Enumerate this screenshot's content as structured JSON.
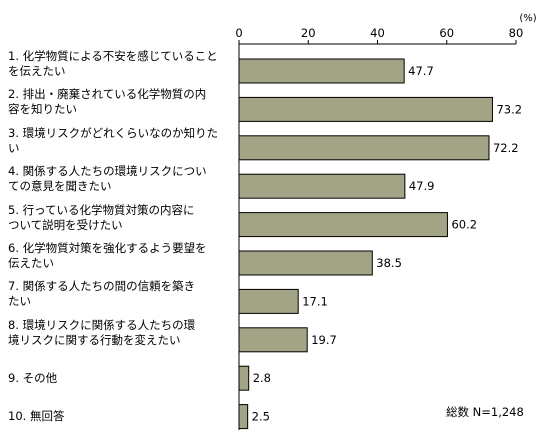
{
  "chart_data": {
    "type": "bar",
    "orientation": "horizontal",
    "categories": [
      "1. 化学物質による不安を感じていること\nを伝えたい",
      "2. 排出・廃棄されている化学物質の内\n容を知りたい",
      "3. 環境リスクがどれくらいなのか知りた\nい",
      "4. 関係する人たちの環境リスクについ\nての意見を聞きたい",
      "5. 行っている化学物質対策の内容に\nついて説明を受けたい",
      "6. 化学物質対策を強化するよう要望を\n伝えたい",
      "7. 関係する人たちの間の信頼を築き\nたい",
      "8. 環境リスクに関係する人たちの環\n境リスクに関する行動を変えたい",
      "9. その他",
      "10. 無回答"
    ],
    "values": [
      47.7,
      73.2,
      72.2,
      47.9,
      60.2,
      38.5,
      17.1,
      19.7,
      2.8,
      2.5
    ],
    "value_labels": [
      "47.7",
      "73.2",
      "72.2",
      "47.9",
      "60.2",
      "38.5",
      "17.1",
      "19.7",
      "2.8",
      "2.5"
    ],
    "xticks": [
      "0",
      "20",
      "40",
      "60",
      "80"
    ],
    "xlim": [
      0,
      80
    ],
    "unit": "(%)",
    "note": "総数 N=1,248",
    "bar_color": "#a3a386",
    "grid": false
  }
}
